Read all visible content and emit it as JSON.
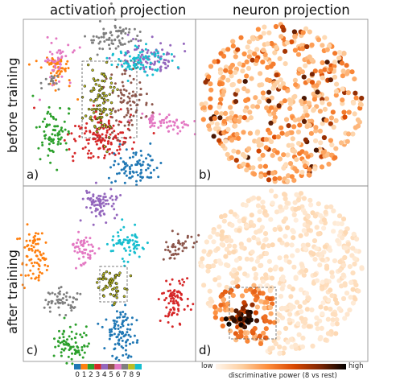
{
  "columns": {
    "left_title": "activation projection",
    "right_title": "neuron projection"
  },
  "rows": {
    "top_title": "before training",
    "bottom_title": "after training"
  },
  "panels": [
    {
      "label": "a)",
      "kind": "activation",
      "state": "before"
    },
    {
      "label": "b)",
      "kind": "neuron",
      "state": "before"
    },
    {
      "label": "c)",
      "kind": "activation",
      "state": "after"
    },
    {
      "label": "d)",
      "kind": "neuron",
      "state": "after"
    }
  ],
  "digit_legend": {
    "digits": [
      "0",
      "1",
      "2",
      "3",
      "4",
      "5",
      "6",
      "7",
      "8",
      "9"
    ],
    "colors": [
      "#1f77b4",
      "#ff7f0e",
      "#2ca02c",
      "#d62728",
      "#9467bd",
      "#8c564b",
      "#e377c2",
      "#7f7f7f",
      "#bcbd22",
      "#17becf"
    ]
  },
  "colorbar": {
    "low_label": "low",
    "high_label": "high",
    "title": "discriminative power (8 vs rest)",
    "colors": [
      "#fff5eb",
      "#fdd0a2",
      "#fd8d3c",
      "#d94801",
      "#7f2704",
      "#000000"
    ]
  },
  "highlight_color": "#555555",
  "highlight_style": "dashed"
}
